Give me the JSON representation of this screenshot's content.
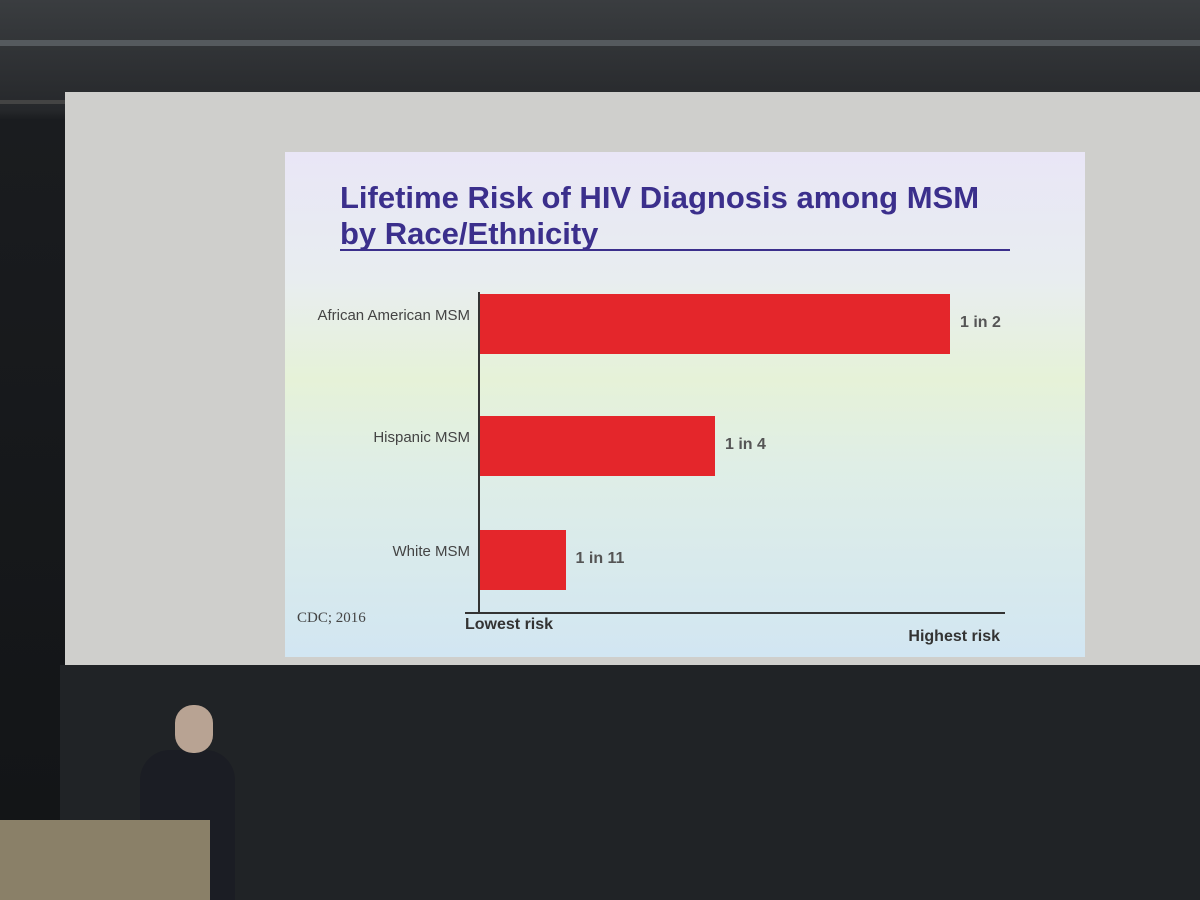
{
  "chart_data": {
    "type": "bar",
    "orientation": "horizontal",
    "title": "Lifetime Risk of HIV Diagnosis among MSM by Race/Ethnicity",
    "categories": [
      "African American MSM",
      "Hispanic MSM",
      "White MSM"
    ],
    "values": [
      0.5,
      0.25,
      0.091
    ],
    "value_labels": [
      "1 in 2",
      "1 in 4",
      "1 in 11"
    ],
    "color": "#e4262b",
    "xlim": [
      0,
      0.5
    ],
    "axis_start_label": "Lowest risk",
    "axis_end_label": "Highest risk",
    "source": "CDC; 2016"
  }
}
